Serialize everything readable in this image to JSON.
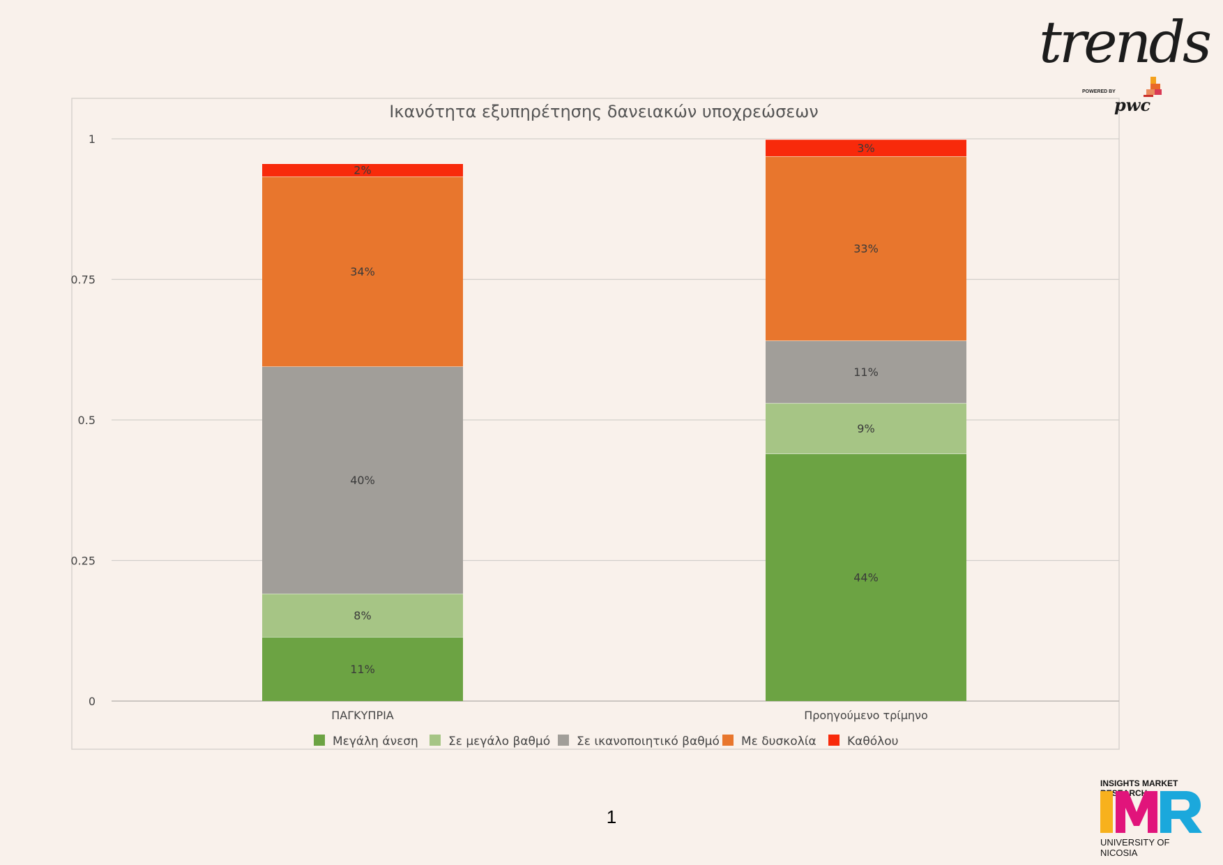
{
  "page": {
    "number": "1"
  },
  "logos": {
    "trends": {
      "word": "trends",
      "powered_by": "POWERED BY",
      "pwc": "pwc"
    },
    "imr": {
      "top_text": "INSIGHTS MARKET RESEARCH",
      "mark_text": "IMR",
      "bottom_text": "UNIVERSITY OF NICOSIA"
    }
  },
  "chart_data": {
    "type": "bar",
    "stacked": true,
    "title": "Ικανότητα εξυπηρέτησης δανειακών υποχρεώσεων",
    "xlabel": "",
    "ylabel": "",
    "ylim": [
      0,
      1
    ],
    "yticks": [
      0,
      0.25,
      0.5,
      0.75,
      1
    ],
    "ytick_labels": [
      "0",
      "0.25",
      "0.5",
      "0.75",
      "1"
    ],
    "grid": true,
    "legend_position": "bottom",
    "categories": [
      "ΠΑΓΚΥΠΡΙΑ",
      "Προηγούμενο τρίμηνο"
    ],
    "series": [
      {
        "name": "Μεγάλη άνεση",
        "color": "#6ca343",
        "values": [
          0.114,
          0.44
        ],
        "labels": [
          "11%",
          "44%"
        ]
      },
      {
        "name": "Σε μεγάλο βαθμό",
        "color": "#a6c585",
        "values": [
          0.077,
          0.09
        ],
        "labels": [
          "8%",
          "9%"
        ]
      },
      {
        "name": "Σε ικανοποιητικό βαθμό",
        "color": "#a19e99",
        "values": [
          0.404,
          0.111
        ],
        "labels": [
          "40%",
          "11%"
        ]
      },
      {
        "name": "Με δυσκολία",
        "color": "#e8762d",
        "values": [
          0.338,
          0.328
        ],
        "labels": [
          "34%",
          "33%"
        ]
      },
      {
        "name": "Καθόλου",
        "color": "#f82a0b",
        "values": [
          0.023,
          0.03
        ],
        "labels": [
          "2%",
          "3%"
        ]
      }
    ]
  }
}
